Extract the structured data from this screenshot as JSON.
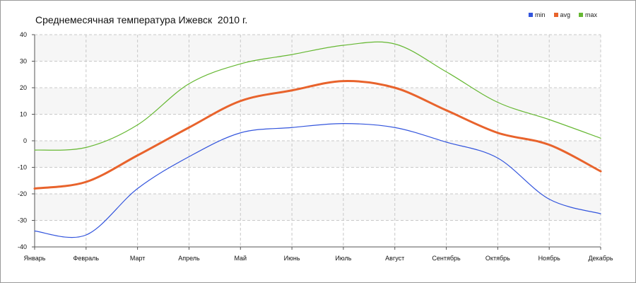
{
  "chart_data": {
    "type": "line",
    "title": "Среднемесячная температура Ижевск  2010 г.",
    "categories": [
      "Январь",
      "Февраль",
      "Март",
      "Апрель",
      "Май",
      "Июнь",
      "Июль",
      "Август",
      "Сентябрь",
      "Октябрь",
      "Ноябрь",
      "Декабрь"
    ],
    "yticks": [
      -40,
      -30,
      -20,
      -10,
      0,
      10,
      20,
      30,
      40
    ],
    "ylim": [
      -40,
      40
    ],
    "grid": true,
    "legend_position": "top-right",
    "series": [
      {
        "name": "min",
        "color": "#3355dd",
        "values": [
          -34,
          -35.5,
          -18,
          -6,
          3,
          5,
          6.5,
          5,
          -0.5,
          -6.5,
          -22,
          -27.5
        ]
      },
      {
        "name": "avg",
        "color": "#e8632c",
        "values": [
          -18,
          -15.5,
          -5.5,
          5,
          15,
          19,
          22.5,
          20,
          11.5,
          3,
          -1.5,
          -11.5
        ]
      },
      {
        "name": "max",
        "color": "#66b833",
        "values": [
          -3.5,
          -2.5,
          6,
          21.5,
          29,
          32.5,
          36,
          36.5,
          26,
          14.5,
          8,
          1
        ]
      }
    ]
  }
}
